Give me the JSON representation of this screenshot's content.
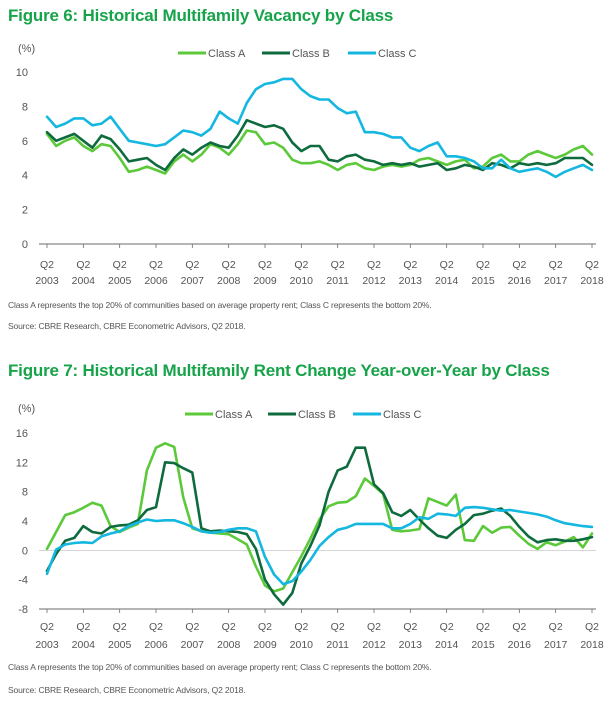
{
  "colors": {
    "class_a": "#5cc93a",
    "class_b": "#0e6b3d",
    "class_c": "#14b7e0",
    "title": "#17a34a",
    "axis": "#6b6b6b"
  },
  "x_ticks": [
    {
      "q": "Q2",
      "y": "2003"
    },
    {
      "q": "Q2",
      "y": "2004"
    },
    {
      "q": "Q2",
      "y": "2005"
    },
    {
      "q": "Q2",
      "y": "2006"
    },
    {
      "q": "Q2",
      "y": "2007"
    },
    {
      "q": "Q2",
      "y": "2008"
    },
    {
      "q": "Q2",
      "y": "2009"
    },
    {
      "q": "Q2",
      "y": "2010"
    },
    {
      "q": "Q2",
      "y": "2011"
    },
    {
      "q": "Q2",
      "y": "2012"
    },
    {
      "q": "Q2",
      "y": "2013"
    },
    {
      "q": "Q2",
      "y": "2014"
    },
    {
      "q": "Q2",
      "y": "2015"
    },
    {
      "q": "Q2",
      "y": "2016"
    },
    {
      "q": "Q2",
      "y": "2017"
    },
    {
      "q": "Q2",
      "y": "2018"
    }
  ],
  "figures": [
    {
      "title": "Figure 6: Historical Multifamily Vacancy by Class",
      "footnote": "Class A represents the top 20% of communities based on average property rent; Class C represents the bottom 20%.",
      "source": "Source: CBRE Research, CBRE Econometric Advisors, Q2 2018."
    },
    {
      "title": "Figure 7: Historical Multifamily Rent Change Year-over-Year by Class",
      "footnote": "Class A represents the top 20% of communities based on average property rent; Class C represents the bottom 20%.",
      "source": "Source: CBRE Research, CBRE Econometric Advisors, Q2 2018."
    }
  ],
  "chart_data": [
    {
      "type": "line",
      "title": "Figure 6: Historical Multifamily Vacancy by Class",
      "ylabel": "(%)",
      "ylim": [
        0,
        10
      ],
      "yticks": [
        0,
        2,
        4,
        6,
        8,
        10
      ],
      "x_start": "Q2 2003",
      "x_step": "quarter",
      "legend_position": "top-center",
      "series": [
        {
          "name": "Class A",
          "key": "class_a",
          "values": [
            6.4,
            5.7,
            6.0,
            6.2,
            5.7,
            5.4,
            5.8,
            5.7,
            5.0,
            4.2,
            4.3,
            4.5,
            4.3,
            4.1,
            4.8,
            5.2,
            4.8,
            5.2,
            5.8,
            5.6,
            5.2,
            5.8,
            6.6,
            6.5,
            5.8,
            5.9,
            5.6,
            4.9,
            4.7,
            4.7,
            4.8,
            4.6,
            4.3,
            4.6,
            4.7,
            4.4,
            4.3,
            4.5,
            4.6,
            4.5,
            4.6,
            4.9,
            5.0,
            4.8,
            4.6,
            4.8,
            4.9,
            4.4,
            4.5,
            5.0,
            5.2,
            4.8,
            4.8,
            5.2,
            5.4,
            5.2,
            5.0,
            5.2,
            5.5,
            5.7,
            5.2
          ]
        },
        {
          "name": "Class B",
          "key": "class_b",
          "values": [
            6.5,
            6.0,
            6.2,
            6.4,
            6.0,
            5.6,
            6.3,
            6.1,
            5.5,
            4.8,
            4.9,
            5.0,
            4.6,
            4.3,
            5.0,
            5.5,
            5.2,
            5.6,
            5.9,
            5.7,
            5.6,
            6.3,
            7.2,
            7.0,
            6.8,
            6.9,
            6.7,
            5.9,
            5.4,
            5.7,
            5.7,
            4.9,
            4.8,
            5.1,
            5.2,
            4.9,
            4.8,
            4.6,
            4.7,
            4.6,
            4.7,
            4.5,
            4.6,
            4.7,
            4.3,
            4.4,
            4.6,
            4.5,
            4.3,
            4.7,
            4.6,
            4.4,
            4.7,
            4.6,
            4.7,
            4.6,
            4.7,
            5.0,
            5.0,
            5.0,
            4.6
          ]
        },
        {
          "name": "Class C",
          "key": "class_c",
          "values": [
            7.4,
            6.8,
            7.0,
            7.3,
            7.3,
            6.9,
            7.0,
            7.4,
            6.7,
            6.0,
            5.9,
            5.8,
            5.7,
            5.8,
            6.2,
            6.6,
            6.5,
            6.3,
            6.7,
            7.7,
            7.3,
            7.0,
            8.2,
            9.0,
            9.3,
            9.4,
            9.6,
            9.6,
            9.0,
            8.6,
            8.4,
            8.4,
            7.9,
            7.6,
            7.7,
            6.5,
            6.5,
            6.4,
            6.2,
            6.2,
            5.6,
            5.4,
            5.7,
            5.9,
            5.1,
            5.1,
            5.0,
            4.8,
            4.4,
            4.4,
            4.9,
            4.4,
            4.2,
            4.3,
            4.4,
            4.2,
            3.9,
            4.2,
            4.4,
            4.6,
            4.3
          ]
        }
      ]
    },
    {
      "type": "line",
      "title": "Figure 7: Historical Multifamily Rent Change Year-over-Year by Class",
      "ylabel": "(%)",
      "ylim": [
        -8,
        16
      ],
      "yticks": [
        -8,
        -4,
        0,
        4,
        8,
        12,
        16
      ],
      "x_start": "Q2 2003",
      "x_step": "quarter",
      "legend_position": "top-center",
      "series": [
        {
          "name": "Class A",
          "key": "class_a",
          "values": [
            0.2,
            2.5,
            4.8,
            5.2,
            5.8,
            6.5,
            6.1,
            3.3,
            2.5,
            3.1,
            3.6,
            10.9,
            14.0,
            14.6,
            14.1,
            7.2,
            3.0,
            2.6,
            2.4,
            2.3,
            2.2,
            1.5,
            0.8,
            -2.2,
            -4.8,
            -5.6,
            -5.2,
            -3.0,
            -0.8,
            1.6,
            4.2,
            6.0,
            6.5,
            6.6,
            7.4,
            9.8,
            8.8,
            7.7,
            2.8,
            2.6,
            2.7,
            2.9,
            7.1,
            6.6,
            6.1,
            7.6,
            1.4,
            1.3,
            3.3,
            2.4,
            3.1,
            3.2,
            2.0,
            0.9,
            0.2,
            1.1,
            0.7,
            1.2,
            1.8,
            0.4,
            2.3
          ]
        },
        {
          "name": "Class B",
          "key": "class_b",
          "values": [
            -2.8,
            -0.5,
            1.3,
            1.7,
            3.3,
            2.5,
            2.3,
            3.2,
            3.4,
            3.5,
            4.1,
            5.5,
            5.9,
            12.0,
            11.9,
            11.2,
            10.6,
            3.0,
            2.6,
            2.7,
            2.6,
            2.5,
            2.2,
            0.2,
            -4.0,
            -6.0,
            -7.4,
            -5.8,
            -1.8,
            0.6,
            3.4,
            8.0,
            10.9,
            11.4,
            14.0,
            14.0,
            9.0,
            7.8,
            5.2,
            4.7,
            5.5,
            4.2,
            3.0,
            2.0,
            1.7,
            2.8,
            3.6,
            4.8,
            5.0,
            5.4,
            5.7,
            4.7,
            3.2,
            1.9,
            1.1,
            1.4,
            1.5,
            1.3,
            1.3,
            1.5,
            1.8
          ]
        },
        {
          "name": "Class C",
          "key": "class_c",
          "values": [
            -3.2,
            0.1,
            0.8,
            1.0,
            1.1,
            1.0,
            1.9,
            2.3,
            2.6,
            3.3,
            3.8,
            4.2,
            4.0,
            4.1,
            4.1,
            3.7,
            3.2,
            2.6,
            2.4,
            2.5,
            2.8,
            3.0,
            3.0,
            2.6,
            -0.9,
            -3.3,
            -4.6,
            -4.2,
            -2.9,
            -1.3,
            0.6,
            1.8,
            2.8,
            3.1,
            3.6,
            3.6,
            3.6,
            3.6,
            3.0,
            3.0,
            3.6,
            4.5,
            4.3,
            5.0,
            4.9,
            4.7,
            5.8,
            5.9,
            5.8,
            5.6,
            5.4,
            5.5,
            5.3,
            5.1,
            4.9,
            4.6,
            4.1,
            3.7,
            3.5,
            3.3,
            3.2
          ]
        }
      ]
    }
  ]
}
